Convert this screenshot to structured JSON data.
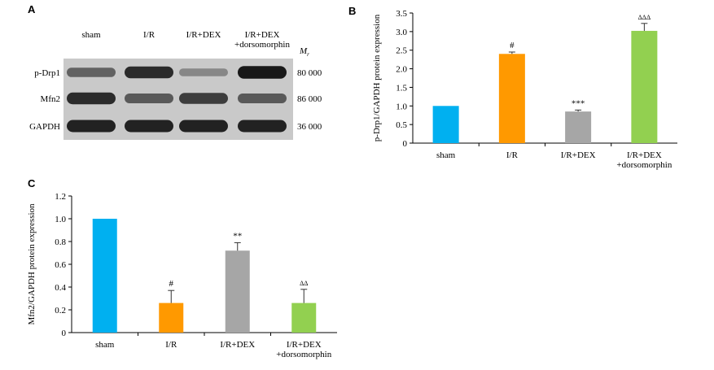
{
  "panels": {
    "a": "A",
    "b": "B",
    "c": "C"
  },
  "blot": {
    "lanes": [
      "sham",
      "I/R",
      "I/R+DEX",
      "I/R+DEX\n+dorsomorphin"
    ],
    "mr_label": "M",
    "mr_sub": "r",
    "rows": [
      {
        "label": "p-Drp1",
        "weight": "80 000",
        "intensities": [
          0.55,
          0.85,
          0.35,
          0.95
        ]
      },
      {
        "label": "Mfn2",
        "weight": "86 000",
        "intensities": [
          0.85,
          0.6,
          0.75,
          0.6
        ]
      },
      {
        "label": "GAPDH",
        "weight": "36 000",
        "intensities": [
          0.9,
          0.9,
          0.9,
          0.9
        ]
      }
    ]
  },
  "chart_data": [
    {
      "type": "bar",
      "title": "",
      "xlabel": "",
      "ylabel": "p-Drp1/GAPDH protein expression",
      "categories": [
        "sham",
        "I/R",
        "I/R+DEX",
        "I/R+DEX\n+dorsomorphin"
      ],
      "values": [
        1.0,
        2.4,
        0.85,
        3.02
      ],
      "errors": [
        0.0,
        0.05,
        0.04,
        0.2
      ],
      "annotations": [
        "",
        "#",
        "***",
        "ΔΔΔ"
      ],
      "colors": [
        "#00b0f0",
        "#ff9900",
        "#a6a6a6",
        "#92d050"
      ],
      "ylim": [
        0,
        3.5
      ],
      "yticks": [
        0,
        0.5,
        1.0,
        1.5,
        2.0,
        2.5,
        3.0,
        3.5
      ],
      "ytick_labels": [
        "0",
        "0.5",
        "1.0",
        "1.5",
        "2.0",
        "2.5",
        "3.0",
        "3.5"
      ],
      "grid": false
    },
    {
      "type": "bar",
      "title": "",
      "xlabel": "",
      "ylabel": "Mfn2/GAPDH protein expression",
      "categories": [
        "sham",
        "I/R",
        "I/R+DEX",
        "I/R+DEX\n+dorsomorphin"
      ],
      "values": [
        1.0,
        0.26,
        0.72,
        0.26
      ],
      "errors": [
        0.0,
        0.11,
        0.07,
        0.12
      ],
      "annotations": [
        "",
        "#",
        "**",
        "ΔΔ"
      ],
      "colors": [
        "#00b0f0",
        "#ff9900",
        "#a6a6a6",
        "#92d050"
      ],
      "ylim": [
        0,
        1.2
      ],
      "yticks": [
        0,
        0.2,
        0.4,
        0.6,
        0.8,
        1.0,
        1.2
      ],
      "ytick_labels": [
        "0",
        "0.2",
        "0.4",
        "0.6",
        "0.8",
        "1.0",
        "1.2"
      ],
      "grid": false
    }
  ]
}
